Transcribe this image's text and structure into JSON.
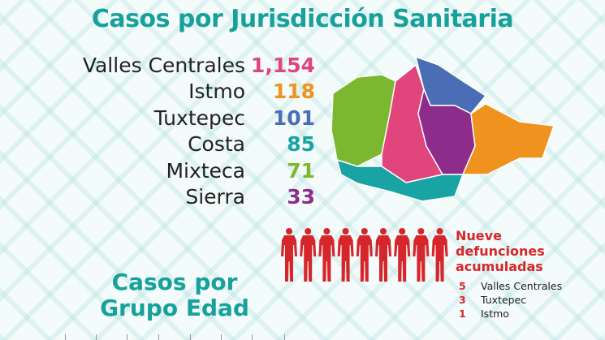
{
  "title": "Casos por Jurisdicción Sanitaria",
  "jurisdictions": [
    {
      "name": "Valles Centrales",
      "cases": "1,154",
      "color": "#e0457b"
    },
    {
      "name": "Istmo",
      "cases": "118",
      "color": "#f0921e"
    },
    {
      "name": "Tuxtepec",
      "cases": "101",
      "color": "#4a6db5"
    },
    {
      "name": "Costa",
      "cases": "85",
      "color": "#1aa3a3"
    },
    {
      "name": "Mixteca",
      "cases": "71",
      "color": "#7cb82f"
    },
    {
      "name": "Sierra",
      "cases": "33",
      "color": "#8e2c8c"
    }
  ],
  "deaths": {
    "title_lines": [
      "Nueve",
      "defunciones",
      "acumuladas"
    ],
    "count": 9,
    "color": "#d7262b",
    "breakdown": [
      {
        "count": "5",
        "label": "Valles Centrales"
      },
      {
        "count": "3",
        "label": "Tuxtepec"
      },
      {
        "count": "1",
        "label": "Istmo"
      }
    ]
  },
  "age_section": {
    "title_lines": [
      "Casos por",
      "Grupo Edad"
    ]
  }
}
